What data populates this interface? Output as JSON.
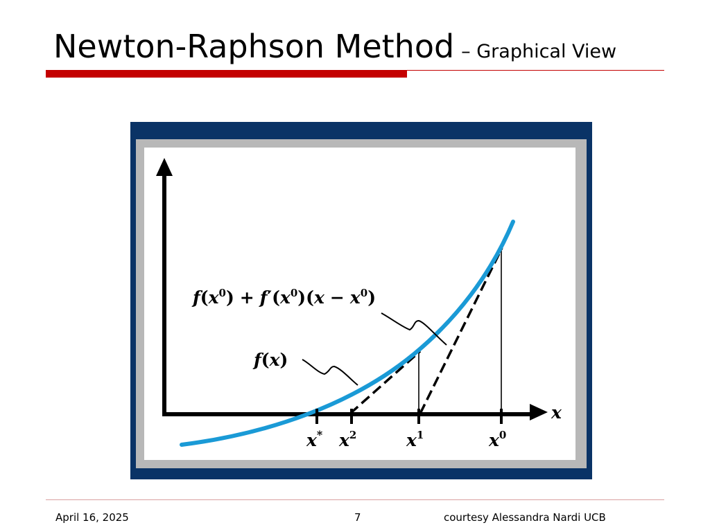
{
  "slide": {
    "title": "Newton-Raphson Method",
    "subtitle": "– Graphical View"
  },
  "figure": {
    "tangent_label": {
      "f": "f",
      "open1": "(",
      "x": "x",
      "sup0": "0",
      "close1": ")",
      "plus": "+",
      "fprime": "f",
      "prime": "′",
      "open2": "(",
      "x2": "x",
      "sup0b": "0",
      "close2": ")",
      "open3": "(",
      "x3": "x",
      "minus": "−",
      "x4": "x",
      "sup0c": "0",
      "close3": ")"
    },
    "curve_label": {
      "f": "f",
      "open": "(",
      "x": "x",
      "close": ")"
    },
    "axis_label": "x",
    "ticks": [
      {
        "base": "x",
        "sup": "*"
      },
      {
        "base": "x",
        "sup": "2"
      },
      {
        "base": "x",
        "sup": "1"
      },
      {
        "base": "x",
        "sup": "0"
      }
    ],
    "colors": {
      "frame": "#0a3366",
      "curve": "#1a9ad6",
      "axis": "#000000"
    }
  },
  "footer": {
    "date": "April 16, 2025",
    "page": "7",
    "credit": "courtesy Alessandra Nardi UCB"
  }
}
